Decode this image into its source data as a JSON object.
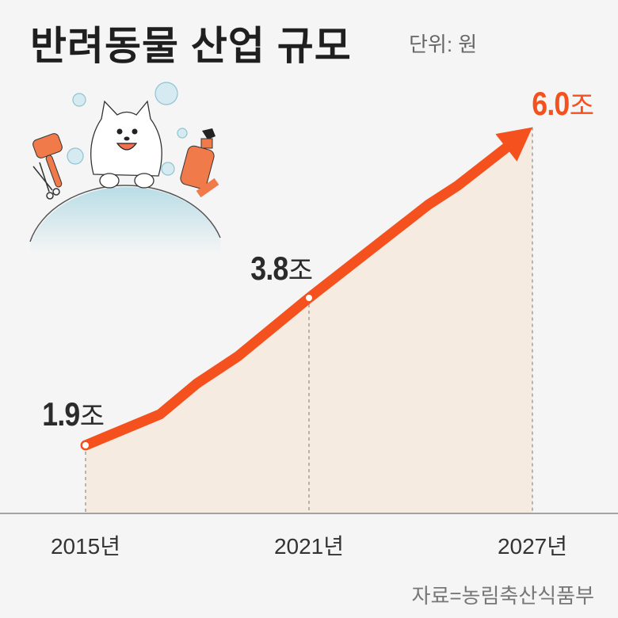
{
  "title": "반려동물 산업 규모",
  "unit_label": "단위: 원",
  "source": "자료=농림축산식품부",
  "colors": {
    "line": "#f4511e",
    "highlight": "#f4511e",
    "area": "#f5ebe0",
    "background": "#f5f5f5",
    "text": "#2b2b2b"
  },
  "illustration": {
    "icons": [
      "dog-icon",
      "bubble-icon",
      "brush-icon",
      "scissors-icon",
      "spray-bottle-icon",
      "comb-icon",
      "bathtub-icon"
    ]
  },
  "chart_data": {
    "type": "area",
    "title": "반려동물 산업 규모",
    "unit": "원",
    "x_ticks": [
      "2015년",
      "2021년",
      "2027년"
    ],
    "labeled_points": [
      {
        "year": 2015,
        "value": 1.9,
        "label_num": "1.9",
        "label_suffix": "조"
      },
      {
        "year": 2021,
        "value": 3.8,
        "label_num": "3.8",
        "label_suffix": "조"
      },
      {
        "year": 2027,
        "value": 6.0,
        "label_num": "6.0",
        "label_suffix": "조",
        "highlight": true
      }
    ],
    "series": [
      {
        "x": [
          2015,
          2017,
          2018,
          2019.1,
          2021,
          2024.2,
          2025,
          2027
        ],
        "y": [
          1.9,
          2.3,
          2.7,
          3.05,
          3.8,
          5.0,
          5.25,
          6.0
        ]
      }
    ],
    "grid": false,
    "arrow_end": true
  }
}
